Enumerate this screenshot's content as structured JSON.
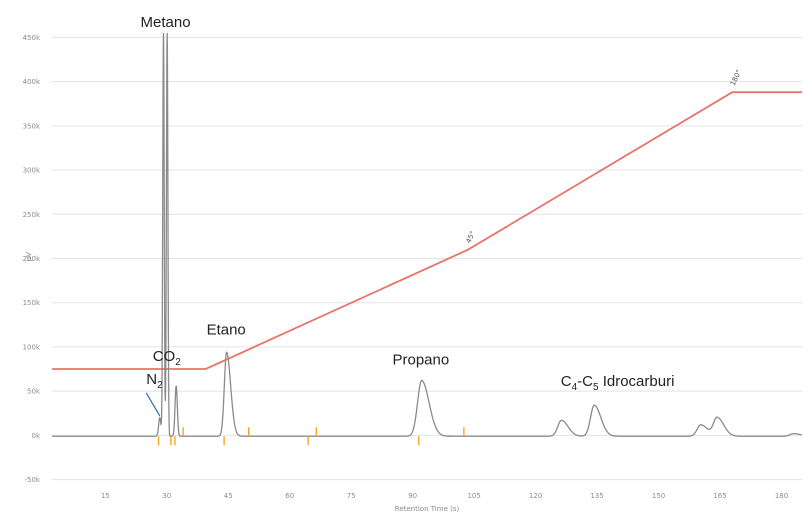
{
  "chart_data": {
    "type": "line",
    "xlabel": "Retention Time (s)",
    "ylabel": "µV",
    "x_ticks": [
      15,
      30,
      45,
      60,
      75,
      90,
      105,
      120,
      135,
      150,
      165,
      180
    ],
    "x_tick_labels": [
      "15",
      "30",
      "45",
      "60",
      "75",
      "90",
      "105",
      "120",
      "135",
      "150",
      "165",
      "180"
    ],
    "y_ticks": [
      -50,
      0,
      50,
      100,
      150,
      200,
      250,
      300,
      350,
      400,
      450
    ],
    "y_tick_labels": [
      "-50k",
      "0k",
      "50k",
      "100k",
      "150k",
      "200k",
      "250k",
      "300k",
      "350k",
      "400k",
      "450k"
    ],
    "xlim": [
      2,
      185
    ],
    "ylim": [
      -55,
      455
    ],
    "grid": true,
    "colors": {
      "signal": "#8a8a8a",
      "temperature": "#e8736a",
      "integration_marks": "#f5a623",
      "grid": "#e3e3e3",
      "annotation_line": "#2a6bb5"
    },
    "series": [
      {
        "kind": "chromatogram",
        "baseline": -1,
        "peaks": [
          {
            "label": "N2",
            "x": 28.3,
            "y": 20
          },
          {
            "label": "Metano",
            "x": 29.2,
            "y": 455
          },
          {
            "label": "Metano",
            "x": 30.1,
            "y": 455
          },
          {
            "label": "CO2",
            "x": 32.3,
            "y": 56
          },
          {
            "label": "Etano",
            "x": 44.6,
            "y": 94
          },
          {
            "label": "Propano",
            "x": 92.2,
            "y": 62
          },
          {
            "label": "",
            "x": 126.3,
            "y": 17
          },
          {
            "label": "",
            "x": 134.3,
            "y": 34
          },
          {
            "label": "",
            "x": 160.3,
            "y": 12
          },
          {
            "label": "",
            "x": 164.3,
            "y": 20
          },
          {
            "label": "",
            "x": 183,
            "y": 2
          }
        ]
      },
      {
        "kind": "temperature",
        "points": [
          [
            2,
            75
          ],
          [
            39.5,
            75
          ],
          [
            103.5,
            210
          ],
          [
            168,
            388
          ],
          [
            185,
            388
          ]
        ]
      }
    ],
    "integration_marks": [
      {
        "x": 28,
        "dir": "down"
      },
      {
        "x": 31,
        "dir": "down"
      },
      {
        "x": 32,
        "dir": "down"
      },
      {
        "x": 34,
        "dir": "up"
      },
      {
        "x": 44,
        "dir": "down"
      },
      {
        "x": 50,
        "dir": "up"
      },
      {
        "x": 64.5,
        "dir": "down"
      },
      {
        "x": 66.5,
        "dir": "up"
      },
      {
        "x": 91.5,
        "dir": "down"
      },
      {
        "x": 102.5,
        "dir": "up"
      }
    ],
    "temperature_labels": [
      {
        "text": "45°",
        "x": 103.5,
        "y": 210
      },
      {
        "text": "180°",
        "x": 168,
        "y": 388
      }
    ],
    "annotations": [
      {
        "text": "Metano",
        "x": 29.7,
        "y": 462
      },
      {
        "text": "N",
        "sub": "2",
        "x": 27,
        "y": 58,
        "leader": [
          [
            25,
            48
          ],
          [
            28.3,
            22
          ]
        ]
      },
      {
        "text": "CO",
        "sub": "2",
        "x": 30,
        "y": 84
      },
      {
        "text": "Etano",
        "x": 44.5,
        "y": 114
      },
      {
        "text": "Propano",
        "x": 92,
        "y": 80
      },
      {
        "text": "C",
        "sub": "4",
        "text2": "-C",
        "sub2": "5",
        "text3": " Idrocarburi",
        "x": 140,
        "y": 56
      }
    ]
  }
}
